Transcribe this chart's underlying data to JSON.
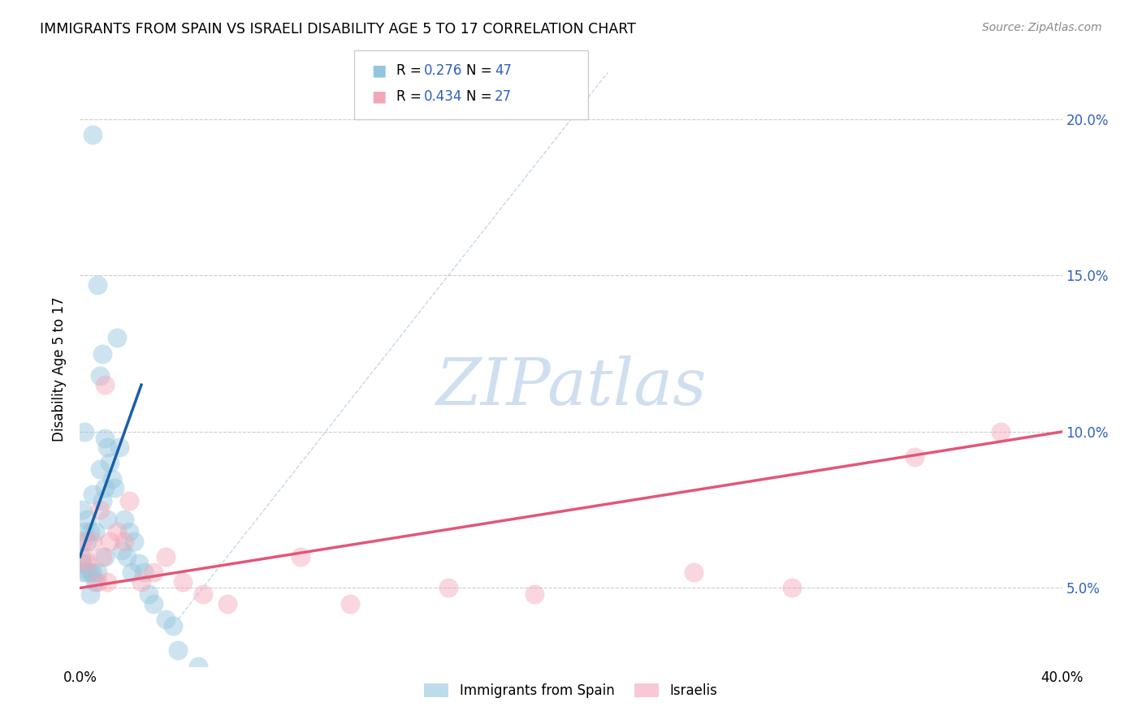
{
  "title": "IMMIGRANTS FROM SPAIN VS ISRAELI DISABILITY AGE 5 TO 17 CORRELATION CHART",
  "source": "Source: ZipAtlas.com",
  "ylabel": "Disability Age 5 to 17",
  "xlim": [
    0,
    0.4
  ],
  "ylim": [
    0.025,
    0.215
  ],
  "yticks": [
    0.05,
    0.1,
    0.15,
    0.2
  ],
  "ytick_labels": [
    "5.0%",
    "10.0%",
    "15.0%",
    "20.0%"
  ],
  "blue_color": "#92c5de",
  "pink_color": "#f4a6b8",
  "blue_line_color": "#1a5fa8",
  "pink_line_color": "#e05878",
  "diag_color": "#b8cce4",
  "watermark_color": "#d0dff0",
  "legend_r1": "0.276",
  "legend_n1": "47",
  "legend_r2": "0.434",
  "legend_n2": "27",
  "rn_color": "#3060c0",
  "spain_x": [
    0.0005,
    0.001,
    0.001,
    0.001,
    0.002,
    0.002,
    0.003,
    0.003,
    0.003,
    0.004,
    0.004,
    0.004,
    0.005,
    0.005,
    0.005,
    0.006,
    0.006,
    0.007,
    0.007,
    0.008,
    0.008,
    0.009,
    0.009,
    0.01,
    0.01,
    0.01,
    0.011,
    0.011,
    0.012,
    0.013,
    0.014,
    0.015,
    0.016,
    0.017,
    0.018,
    0.019,
    0.02,
    0.021,
    0.022,
    0.024,
    0.026,
    0.028,
    0.03,
    0.035,
    0.038,
    0.04,
    0.048
  ],
  "spain_y": [
    0.06,
    0.075,
    0.058,
    0.055,
    0.1,
    0.068,
    0.072,
    0.065,
    0.055,
    0.068,
    0.055,
    0.048,
    0.195,
    0.08,
    0.055,
    0.068,
    0.052,
    0.147,
    0.055,
    0.118,
    0.088,
    0.125,
    0.078,
    0.098,
    0.082,
    0.06,
    0.095,
    0.072,
    0.09,
    0.085,
    0.082,
    0.13,
    0.095,
    0.062,
    0.072,
    0.06,
    0.068,
    0.055,
    0.065,
    0.058,
    0.055,
    0.048,
    0.045,
    0.04,
    0.038,
    0.03,
    0.025
  ],
  "israel_x": [
    0.001,
    0.002,
    0.003,
    0.005,
    0.007,
    0.008,
    0.009,
    0.01,
    0.011,
    0.012,
    0.015,
    0.018,
    0.02,
    0.025,
    0.03,
    0.035,
    0.042,
    0.05,
    0.06,
    0.09,
    0.11,
    0.15,
    0.185,
    0.25,
    0.29,
    0.34,
    0.375
  ],
  "israel_y": [
    0.065,
    0.06,
    0.058,
    0.065,
    0.052,
    0.075,
    0.06,
    0.115,
    0.052,
    0.065,
    0.068,
    0.065,
    0.078,
    0.052,
    0.055,
    0.06,
    0.052,
    0.048,
    0.045,
    0.06,
    0.045,
    0.05,
    0.048,
    0.055,
    0.05,
    0.092,
    0.1
  ],
  "blue_line_x": [
    0.0,
    0.025
  ],
  "blue_line_y": [
    0.06,
    0.115
  ],
  "pink_line_x": [
    0.0,
    0.4
  ],
  "pink_line_y": [
    0.05,
    0.1
  ],
  "diag_line_x": [
    0.04,
    0.215
  ],
  "diag_line_y": [
    0.04,
    0.215
  ]
}
